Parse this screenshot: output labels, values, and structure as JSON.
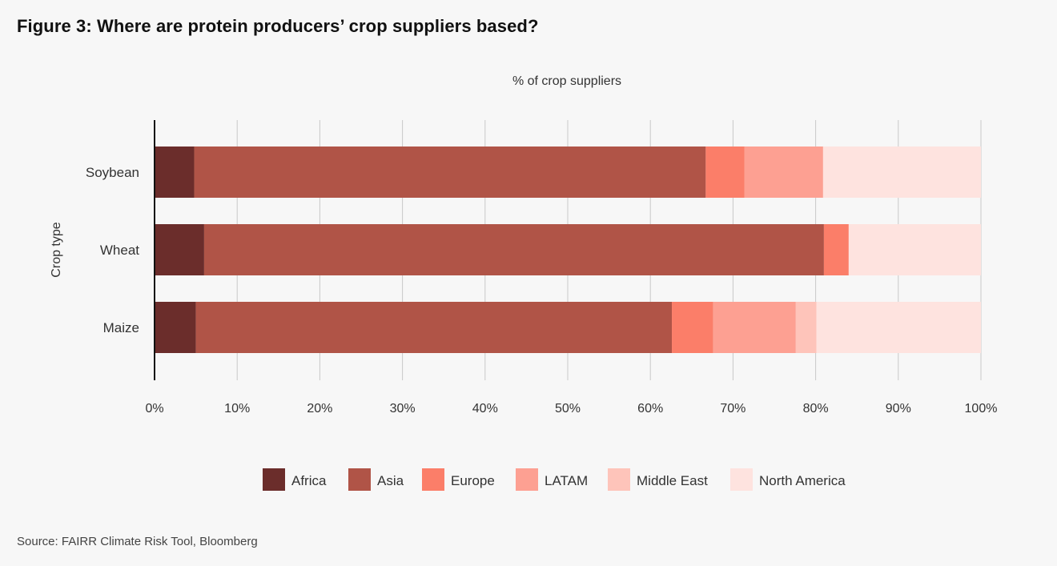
{
  "figure": {
    "title": "Figure 3: Where are protein producers’ crop suppliers based?",
    "source": "Source: FAIRR Climate Risk Tool, Bloomberg"
  },
  "colors": {
    "Africa": "#6b2d2b",
    "Asia": "#b05447",
    "Europe": "#fb7e69",
    "LATAM": "#fda092",
    "Middle East": "#fec4ba",
    "North America": "#fee3df",
    "grid": "#c8c8c8",
    "axis": "#111111"
  },
  "chart_data": {
    "type": "bar",
    "orientation": "horizontal",
    "stacked": true,
    "title": "",
    "xlabel": "% of crop suppliers",
    "ylabel": "Crop type",
    "xlim": [
      0,
      100
    ],
    "x_ticks": [
      0,
      10,
      20,
      30,
      40,
      50,
      60,
      70,
      80,
      90,
      100
    ],
    "x_tick_labels": [
      "0%",
      "10%",
      "20%",
      "30%",
      "40%",
      "50%",
      "60%",
      "70%",
      "80%",
      "90%",
      "100%"
    ],
    "grid": true,
    "legend_position": "bottom",
    "categories": [
      "Soybean",
      "Wheat",
      "Maize"
    ],
    "series": [
      {
        "name": "Africa",
        "values": [
          4.8,
          6.0,
          5.0
        ]
      },
      {
        "name": "Asia",
        "values": [
          61.9,
          75.0,
          57.6
        ]
      },
      {
        "name": "Europe",
        "values": [
          4.7,
          3.0,
          5.0
        ]
      },
      {
        "name": "LATAM",
        "values": [
          9.5,
          0,
          10.0
        ]
      },
      {
        "name": "Middle East",
        "values": [
          0,
          0,
          2.5
        ]
      },
      {
        "name": "North America",
        "values": [
          19.1,
          16.0,
          19.9
        ]
      }
    ]
  }
}
